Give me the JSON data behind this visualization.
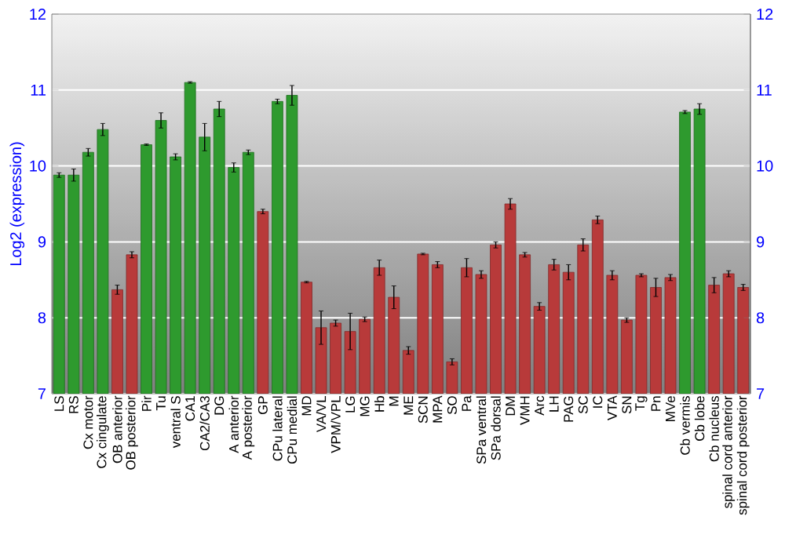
{
  "chart_data": {
    "type": "bar",
    "ylabel": "Log2 (expression)",
    "categories": [
      "LS",
      "RS",
      "Cx motor",
      "Cx cingulate",
      "OB anterior",
      "OB posterior",
      "Pir",
      "Tu",
      "ventral S",
      "CA1",
      "CA2/CA3",
      "DG",
      "A anterior",
      "A posterior",
      "GP",
      "CPu lateral",
      "CPu medial",
      "MD",
      "VA/VL",
      "VPM/VPL",
      "LG",
      "MG",
      "Hb",
      "M",
      "ME",
      "SCN",
      "MPA",
      "SO",
      "Pa",
      "SPa ventral",
      "SPa dorsal",
      "DM",
      "VMH",
      "Arc",
      "LH",
      "PAG",
      "SC",
      "IC",
      "VTA",
      "SN",
      "Tg",
      "Pn",
      "MVe",
      "Cb vermis",
      "Cb lobe",
      "Cb nucleus",
      "spinal cord anterior",
      "spinal cord posterior"
    ],
    "values": [
      9.88,
      9.88,
      10.18,
      10.48,
      8.37,
      8.83,
      10.28,
      10.6,
      10.12,
      11.1,
      10.38,
      10.75,
      9.98,
      10.18,
      9.4,
      10.85,
      10.93,
      8.47,
      7.87,
      7.93,
      7.82,
      7.98,
      8.66,
      8.27,
      7.57,
      8.84,
      8.7,
      7.42,
      8.66,
      8.57,
      8.96,
      9.5,
      8.83,
      8.15,
      8.7,
      8.6,
      8.96,
      9.29,
      8.56,
      7.97,
      8.56,
      8.4,
      8.53,
      10.71,
      10.75,
      8.43,
      8.58,
      8.4
    ],
    "errors": [
      0.03,
      0.08,
      0.05,
      0.08,
      0.06,
      0.04,
      0.01,
      0.1,
      0.04,
      0.01,
      0.18,
      0.1,
      0.06,
      0.03,
      0.03,
      0.03,
      0.13,
      0.01,
      0.22,
      0.04,
      0.24,
      0.03,
      0.1,
      0.15,
      0.05,
      0.01,
      0.04,
      0.04,
      0.12,
      0.05,
      0.04,
      0.07,
      0.03,
      0.05,
      0.07,
      0.1,
      0.08,
      0.05,
      0.06,
      0.03,
      0.02,
      0.12,
      0.04,
      0.02,
      0.07,
      0.1,
      0.04,
      0.04
    ],
    "colors": [
      "#2e9a2e",
      "#2e9a2e",
      "#2e9a2e",
      "#2e9a2e",
      "#b83a3a",
      "#b83a3a",
      "#2e9a2e",
      "#2e9a2e",
      "#2e9a2e",
      "#2e9a2e",
      "#2e9a2e",
      "#2e9a2e",
      "#2e9a2e",
      "#2e9a2e",
      "#b83a3a",
      "#2e9a2e",
      "#2e9a2e",
      "#b83a3a",
      "#b83a3a",
      "#b83a3a",
      "#b83a3a",
      "#b83a3a",
      "#b83a3a",
      "#b83a3a",
      "#b83a3a",
      "#b83a3a",
      "#b83a3a",
      "#b83a3a",
      "#b83a3a",
      "#b83a3a",
      "#b83a3a",
      "#b83a3a",
      "#b83a3a",
      "#b83a3a",
      "#b83a3a",
      "#b83a3a",
      "#b83a3a",
      "#b83a3a",
      "#b83a3a",
      "#b83a3a",
      "#b83a3a",
      "#b83a3a",
      "#b83a3a",
      "#2e9a2e",
      "#2e9a2e",
      "#b83a3a",
      "#b83a3a",
      "#b83a3a"
    ],
    "ylim": [
      7,
      12
    ],
    "yticks": [
      7,
      8,
      9,
      10,
      11,
      12
    ],
    "y2lim": [
      7,
      12
    ],
    "y2ticks": [
      7,
      8,
      9,
      10,
      11,
      12
    ],
    "grid": "y"
  }
}
